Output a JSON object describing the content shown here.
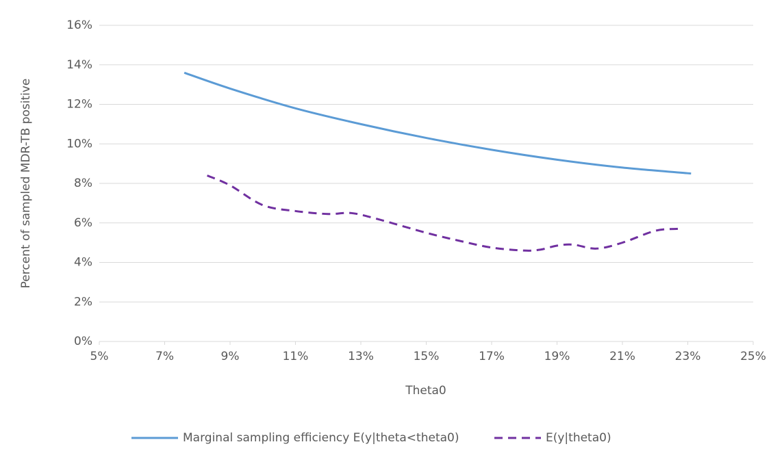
{
  "chart_data": {
    "type": "line",
    "x_label": "Theta0",
    "y_label": "Percent of sampled MDR-TB positive",
    "xlim": [
      5,
      25
    ],
    "ylim": [
      0,
      16
    ],
    "xticks": [
      {
        "value": 5,
        "label": "5%"
      },
      {
        "value": 7,
        "label": "7%"
      },
      {
        "value": 9,
        "label": "9%"
      },
      {
        "value": 11,
        "label": "11%"
      },
      {
        "value": 13,
        "label": "13%"
      },
      {
        "value": 15,
        "label": "15%"
      },
      {
        "value": 17,
        "label": "17%"
      },
      {
        "value": 19,
        "label": "19%"
      },
      {
        "value": 21,
        "label": "21%"
      },
      {
        "value": 23,
        "label": "23%"
      },
      {
        "value": 25,
        "label": "25%"
      }
    ],
    "yticks": [
      {
        "value": 0,
        "label": "0%"
      },
      {
        "value": 2,
        "label": "2%"
      },
      {
        "value": 4,
        "label": "4%"
      },
      {
        "value": 6,
        "label": "6%"
      },
      {
        "value": 8,
        "label": "8%"
      },
      {
        "value": 10,
        "label": "10%"
      },
      {
        "value": 12,
        "label": "12%"
      },
      {
        "value": 14,
        "label": "14%"
      },
      {
        "value": 16,
        "label": "16%"
      }
    ],
    "grid": true,
    "legend": "bottom",
    "series": [
      {
        "name": "Marginal sampling efficiency E(y|theta<theta0)",
        "color": "#5b9bd5",
        "dash": false,
        "x": [
          7.6,
          9,
          11,
          13,
          15,
          17,
          19,
          21,
          23.1
        ],
        "values": [
          13.6,
          12.8,
          11.8,
          11.0,
          10.3,
          9.7,
          9.2,
          8.8,
          8.5
        ]
      },
      {
        "name": "E(y|theta0)",
        "color": "#7030a0",
        "dash": true,
        "x": [
          8.3,
          9,
          10,
          11,
          12,
          12.7,
          13.5,
          15,
          16,
          17,
          18,
          18.5,
          19,
          19.5,
          20.2,
          21,
          22,
          22.7
        ],
        "values": [
          8.4,
          7.9,
          6.9,
          6.6,
          6.45,
          6.5,
          6.2,
          5.5,
          5.1,
          4.75,
          4.6,
          4.65,
          4.85,
          4.9,
          4.7,
          5.0,
          5.6,
          5.7
        ]
      }
    ]
  }
}
